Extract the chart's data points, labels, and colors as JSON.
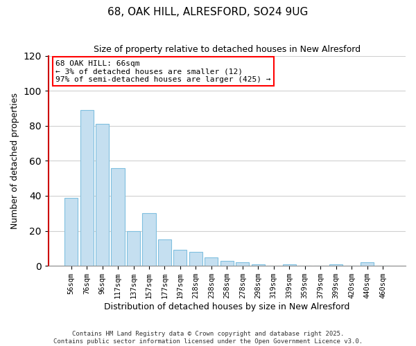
{
  "title": "68, OAK HILL, ALRESFORD, SO24 9UG",
  "subtitle": "Size of property relative to detached houses in New Alresford",
  "xlabel": "Distribution of detached houses by size in New Alresford",
  "ylabel": "Number of detached properties",
  "bar_labels": [
    "56sqm",
    "76sqm",
    "96sqm",
    "117sqm",
    "137sqm",
    "157sqm",
    "177sqm",
    "197sqm",
    "218sqm",
    "238sqm",
    "258sqm",
    "278sqm",
    "298sqm",
    "319sqm",
    "339sqm",
    "359sqm",
    "379sqm",
    "399sqm",
    "420sqm",
    "440sqm",
    "460sqm"
  ],
  "bar_values": [
    39,
    89,
    81,
    56,
    20,
    30,
    15,
    9,
    8,
    5,
    3,
    2,
    1,
    0,
    1,
    0,
    0,
    1,
    0,
    2,
    0
  ],
  "bar_color": "#c5dff0",
  "bar_edge_color": "#7fbfdf",
  "ylim": [
    0,
    120
  ],
  "yticks": [
    0,
    20,
    40,
    60,
    80,
    100,
    120
  ],
  "annotation_title": "68 OAK HILL: 66sqm",
  "annotation_line1": "← 3% of detached houses are smaller (12)",
  "annotation_line2": "97% of semi-detached houses are larger (425) →",
  "footer_line1": "Contains HM Land Registry data © Crown copyright and database right 2025.",
  "footer_line2": "Contains public sector information licensed under the Open Government Licence v3.0.",
  "background_color": "#ffffff",
  "grid_color": "#d0d0d0",
  "highlight_line_color": "#cc0000"
}
